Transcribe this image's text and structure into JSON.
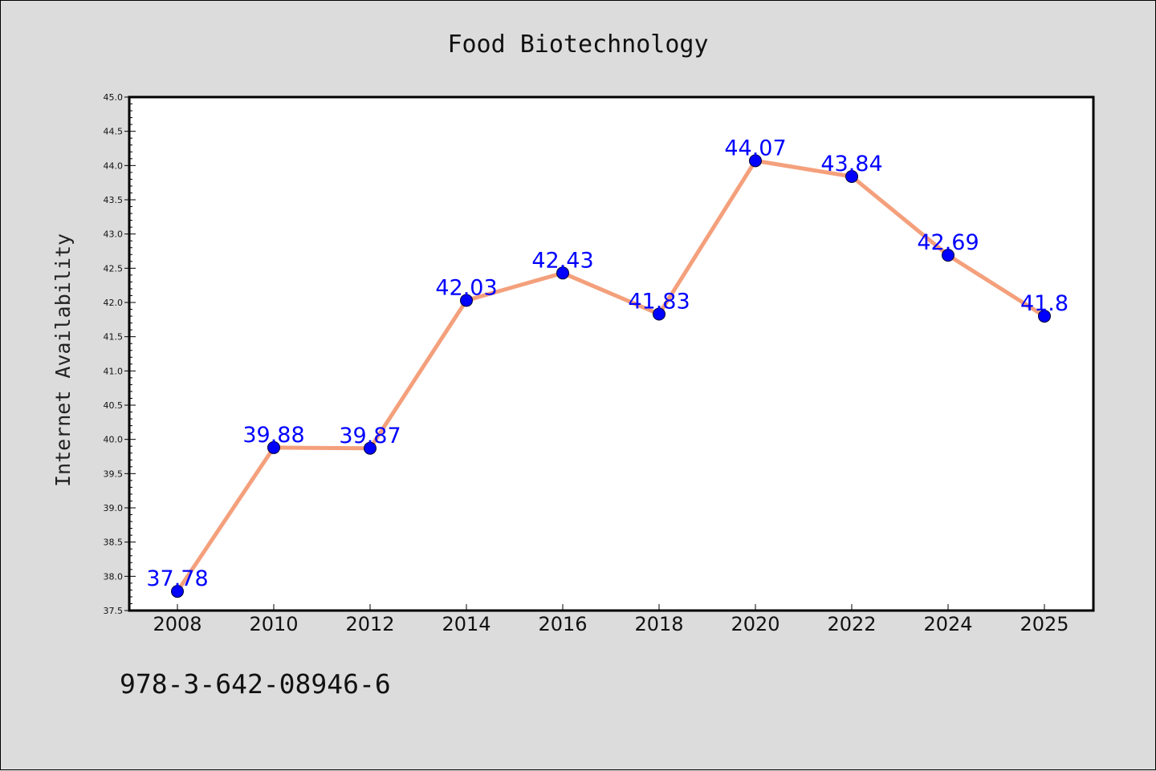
{
  "chart_data": {
    "type": "line",
    "title": "Food Biotechnology",
    "xlabel": "",
    "ylabel": "Internet Availability",
    "categories": [
      "2008",
      "2010",
      "2012",
      "2014",
      "2016",
      "2018",
      "2020",
      "2022",
      "2024",
      "2025"
    ],
    "series": [
      {
        "values": [
          37.78,
          39.88,
          39.87,
          42.03,
          42.43,
          41.83,
          44.07,
          43.84,
          42.69,
          41.8
        ],
        "labels": [
          "37.78",
          "39.88",
          "39.87",
          "42.03",
          "42.43",
          "41.83",
          "44.07",
          "43.84",
          "42.69",
          "41.8"
        ],
        "line_color": "#f4a07c",
        "marker_color": "#0000ff"
      }
    ],
    "ylim": [
      37.5,
      45.0
    ],
    "yticks": [
      "37.5",
      "38.0",
      "38.5",
      "39.0",
      "39.5",
      "40.0",
      "40.5",
      "41.0",
      "41.5",
      "42.0",
      "42.5",
      "43.0",
      "43.5",
      "44.0",
      "44.5",
      "45.0"
    ],
    "grid": false,
    "legend": "none"
  },
  "footer": {
    "text": "978-3-642-08946-6"
  },
  "colors": {
    "background": "#dcdcdc",
    "plot_background": "#ffffff",
    "line": "#f4a07c",
    "markers": "#0000ff",
    "data_labels": "#0000ff"
  }
}
